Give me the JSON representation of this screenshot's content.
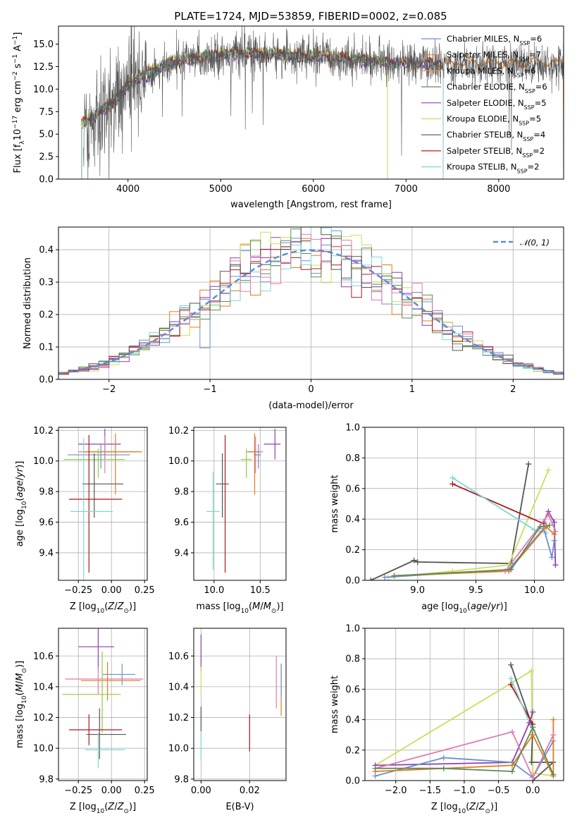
{
  "title": "PLATE=1724, MJD=53859, FIBERID=0002, z=0.085",
  "colors": {
    "chabrier_miles": "#6a8fd0",
    "salpeter_miles": "#e07b1e",
    "kroupa_miles": "#e8923a",
    "chabrier_elodie": "#5b8a5b",
    "salpeter_elodie": "#8e3fb0",
    "kroupa_elodie": "#c8e05a",
    "chabrier_stelib": "#555555",
    "salpeter_stelib": "#b01818",
    "kroupa_stelib": "#7fd6d8",
    "pink": "#e07ab0",
    "light_green": "#8fce3a",
    "ref_dash": "#5b8fd0"
  },
  "chart_data": [
    {
      "id": "spectrum",
      "type": "line",
      "xlabel": "wavelength [Angstrom, rest frame]",
      "ylabel": "Flux [fλ10⁻¹⁷ erg cm⁻² s⁻¹ A⁻¹]",
      "xlim": [
        3250,
        8700
      ],
      "ylim": [
        0,
        17
      ],
      "xticks": [
        4000,
        5000,
        6000,
        7000,
        8000
      ],
      "yticks": [
        0.0,
        2.5,
        5.0,
        7.5,
        10.0,
        12.5,
        15.0
      ],
      "grid": false,
      "legend": "upper right",
      "series": [
        {
          "name": "Chabrier MILES, N_SSP=6",
          "legend_main": "Chabrier MILES, N",
          "legend_sub": "SSP",
          "legend_tail": "=6",
          "color": "#6a8fd0"
        },
        {
          "name": "Salpeter MILES, N_SSP=7",
          "legend_main": "Salpeter MILES, N",
          "legend_sub": "SSP",
          "legend_tail": "=7",
          "color": "#e07b1e"
        },
        {
          "name": "Kroupa MILES, N_SSP=6",
          "legend_main": "Kroupa MILES, N",
          "legend_sub": "SSP",
          "legend_tail": "=6",
          "color": "#e8923a"
        },
        {
          "name": "Chabrier ELODIE, N_SSP=6",
          "legend_main": "Chabrier ELODIE, N",
          "legend_sub": "SSP",
          "legend_tail": "=6",
          "color": "#5b8a5b"
        },
        {
          "name": "Salpeter ELODIE, N_SSP=5",
          "legend_main": "Salpeter ELODIE, N",
          "legend_sub": "SSP",
          "legend_tail": "=5",
          "color": "#8e3fb0"
        },
        {
          "name": "Kroupa ELODIE, N_SSP=5",
          "legend_main": "Kroupa ELODIE, N",
          "legend_sub": "SSP",
          "legend_tail": "=5",
          "color": "#c8e05a"
        },
        {
          "name": "Chabrier STELIB, N_SSP=4",
          "legend_main": "Chabrier STELIB, N",
          "legend_sub": "SSP",
          "legend_tail": "=4",
          "color": "#555555"
        },
        {
          "name": "Salpeter STELIB, N_SSP=2",
          "legend_main": "Salpeter STELIB, N",
          "legend_sub": "SSP",
          "legend_tail": "=2",
          "color": "#b01818"
        },
        {
          "name": "Kroupa STELIB, N_SSP=2",
          "legend_main": "Kroupa STELIB, N",
          "legend_sub": "SSP",
          "legend_tail": "=2",
          "color": "#7fd6d8"
        }
      ],
      "model_continuum": {
        "x": [
          3500,
          3700,
          3900,
          4000,
          4200,
          4400,
          4600,
          4800,
          5000,
          5200,
          5400,
          5600,
          5800,
          6000,
          6200,
          6400,
          6600,
          6800,
          7000,
          7200,
          7400,
          7600,
          7800,
          8000,
          8200,
          8400,
          8700
        ],
        "y": [
          6.0,
          7.5,
          9.0,
          10.5,
          11.7,
          12.6,
          13.2,
          13.5,
          13.8,
          14.0,
          13.9,
          13.8,
          13.7,
          13.6,
          13.5,
          13.3,
          13.1,
          13.0,
          12.9,
          12.8,
          12.7,
          12.8,
          12.7,
          12.8,
          12.8,
          12.8,
          12.7
        ]
      }
    },
    {
      "id": "residuals",
      "type": "line",
      "xlabel": "(data-model)/error",
      "ylabel": "Normed distribution",
      "xlim": [
        -2.5,
        2.5
      ],
      "ylim": [
        0,
        0.47
      ],
      "xticks": [
        -2,
        -1,
        0,
        1,
        2
      ],
      "yticks": [
        0.0,
        0.1,
        0.2,
        0.3,
        0.4
      ],
      "grid": true,
      "legend": "upper right",
      "reference": {
        "name": "𝒩(0, 1)",
        "mu": 0,
        "sigma": 1
      }
    },
    {
      "id": "age-vs-Z",
      "type": "scatter",
      "xlabel": "Z [log10(Z/Z⊙)]",
      "ylabel": "age  [log10(age/yr)]",
      "xlim": [
        -0.4,
        0.27
      ],
      "ylim": [
        9.22,
        10.22
      ],
      "xticks": [
        -0.25,
        0.0,
        0.25
      ],
      "yticks": [
        9.4,
        9.6,
        9.8,
        10.0,
        10.2
      ],
      "grid": true,
      "points": [
        {
          "x": -0.05,
          "y": 10.11,
          "xerr": [
            0.2,
            0.12
          ],
          "yerr": [
            0.1,
            0.1
          ],
          "color": "#8e3fb0"
        },
        {
          "x": -0.05,
          "y": 10.06,
          "xerr": [
            0.2,
            0.25
          ],
          "yerr": [
            0.14,
            0.1
          ],
          "color": "#e07ab0"
        },
        {
          "x": 0.03,
          "y": 10.06,
          "xerr": [
            0.24,
            0.2
          ],
          "yerr": [
            0.28,
            0.12
          ],
          "color": "#e07b1e"
        },
        {
          "x": -0.08,
          "y": 10.04,
          "xerr": [
            0.25,
            0.22
          ],
          "yerr": [
            0.09,
            0.07
          ],
          "color": "#6a8fd0"
        },
        {
          "x": -0.1,
          "y": 10.01,
          "xerr": [
            0.26,
            0.2
          ],
          "yerr": [
            0.12,
            0.07
          ],
          "color": "#8fce3a"
        },
        {
          "x": -0.13,
          "y": 9.85,
          "xerr": [
            0.09,
            0.22
          ],
          "yerr": [
            0.22,
            0.2
          ],
          "color": "#555555"
        },
        {
          "x": -0.17,
          "y": 9.75,
          "xerr": [
            0.15,
            0.25
          ],
          "yerr": [
            0.48,
            0.42
          ],
          "color": "#b01818"
        },
        {
          "x": -0.21,
          "y": 9.67,
          "xerr": [
            0.1,
            0.22
          ],
          "yerr": [
            0.48,
            0.48
          ],
          "color": "#7fd6d8"
        }
      ]
    },
    {
      "id": "age-vs-mass",
      "type": "scatter",
      "xlabel": "mass [log10(M/M⊙)]",
      "ylabel": "",
      "xlim": [
        9.78,
        10.78
      ],
      "ylim": [
        9.22,
        10.22
      ],
      "xticks": [
        10.0,
        10.5
      ],
      "yticks": [
        9.4,
        9.6,
        9.8,
        10.0,
        10.2
      ],
      "grid": true,
      "points": [
        {
          "x": 10.66,
          "y": 10.11,
          "xerr": [
            0.12,
            0.06
          ],
          "yerr": [
            0.1,
            0.1
          ],
          "color": "#8e3fb0"
        },
        {
          "x": 10.45,
          "y": 10.06,
          "xerr": [
            0.1,
            0.08
          ],
          "yerr": [
            0.14,
            0.1
          ],
          "color": "#e07ab0"
        },
        {
          "x": 10.44,
          "y": 10.06,
          "xerr": [
            0.07,
            0.06
          ],
          "yerr": [
            0.28,
            0.12
          ],
          "color": "#e07b1e"
        },
        {
          "x": 10.48,
          "y": 10.04,
          "xerr": [
            0.05,
            0.03
          ],
          "yerr": [
            0.09,
            0.07
          ],
          "color": "#6a8fd0"
        },
        {
          "x": 10.35,
          "y": 10.01,
          "xerr": [
            0.06,
            0.06
          ],
          "yerr": [
            0.12,
            0.07
          ],
          "color": "#8fce3a"
        },
        {
          "x": 10.09,
          "y": 9.85,
          "xerr": [
            0.07,
            0.07
          ],
          "yerr": [
            0.22,
            0.2
          ],
          "color": "#555555"
        },
        {
          "x": 10.12,
          "y": 9.75,
          "xerr": [
            0.0,
            0.0
          ],
          "yerr": [
            0.48,
            0.42
          ],
          "color": "#b01818"
        },
        {
          "x": 9.99,
          "y": 9.67,
          "xerr": [
            0.07,
            0.07
          ],
          "yerr": [
            0.38,
            0.26
          ],
          "color": "#7fd6d8"
        }
      ]
    },
    {
      "id": "massweight-vs-age",
      "type": "line",
      "xlabel": "age  [log10(age/yr)]",
      "ylabel": "mass weight",
      "xlim": [
        8.55,
        10.25
      ],
      "ylim": [
        0,
        1.0
      ],
      "xticks": [
        9.0,
        9.5,
        10.0
      ],
      "yticks": [
        0.0,
        0.2,
        0.4,
        0.6,
        0.8,
        1.0
      ],
      "grid": true,
      "series": [
        {
          "color": "#555555",
          "x": [
            8.6,
            8.97,
            9.0,
            9.8,
            9.95
          ],
          "y": [
            0.0,
            0.13,
            0.12,
            0.11,
            0.76
          ]
        },
        {
          "color": "#c8e05a",
          "x": [
            8.75,
            9.3,
            9.78,
            10.12
          ],
          "y": [
            0.02,
            0.06,
            0.1,
            0.72
          ]
        },
        {
          "color": "#b01818",
          "x": [
            9.3,
            10.08
          ],
          "y": [
            0.63,
            0.37
          ]
        },
        {
          "color": "#7fd6d8",
          "x": [
            9.3,
            10.0,
            10.1
          ],
          "y": [
            0.67,
            0.33,
            0.31
          ]
        },
        {
          "color": "#8e3fb0",
          "x": [
            10.08,
            10.12,
            10.17,
            10.18
          ],
          "y": [
            0.38,
            0.45,
            0.38,
            0.1
          ]
        },
        {
          "color": "#6a8fd0",
          "x": [
            8.72,
            9.78,
            10.08,
            10.15,
            10.17
          ],
          "y": [
            0.02,
            0.07,
            0.34,
            0.15,
            0.26
          ]
        },
        {
          "color": "#e07b1e",
          "x": [
            8.8,
            9.78,
            10.1,
            10.17
          ],
          "y": [
            0.03,
            0.06,
            0.35,
            0.3
          ]
        },
        {
          "color": "#e07ab0",
          "x": [
            9.75,
            10.12,
            10.18
          ],
          "y": [
            0.06,
            0.43,
            0.32
          ]
        },
        {
          "color": "#5b8a5b",
          "x": [
            8.8,
            9.8,
            10.05,
            10.13
          ],
          "y": [
            0.03,
            0.07,
            0.35,
            0.36
          ]
        }
      ]
    },
    {
      "id": "mass-vs-Z",
      "type": "scatter",
      "xlabel": "Z [log10(Z/Z⊙)]",
      "ylabel": "mass [log10(M/M⊙)]",
      "xlim": [
        -0.4,
        0.27
      ],
      "ylim": [
        9.79,
        10.78
      ],
      "xticks": [
        -0.25,
        0.0,
        0.25
      ],
      "yticks": [
        9.8,
        10.0,
        10.2,
        10.4,
        10.6
      ],
      "grid": true,
      "points": [
        {
          "x": -0.1,
          "y": 10.66,
          "xerr": [
            0.15,
            0.12
          ],
          "yerr": [
            0.15,
            0.12
          ],
          "color": "#8e3fb0"
        },
        {
          "x": 0.08,
          "y": 10.48,
          "xerr": [
            0.15,
            0.1
          ],
          "yerr": [
            0.07,
            0.07
          ],
          "color": "#6a8fd0"
        },
        {
          "x": -0.1,
          "y": 10.45,
          "xerr": [
            0.25,
            0.34
          ],
          "yerr": [
            0.1,
            0.08
          ],
          "color": "#e07ab0"
        },
        {
          "x": -0.03,
          "y": 10.44,
          "xerr": [
            0.2,
            0.25
          ],
          "yerr": [
            0.13,
            0.12
          ],
          "color": "#e07b1e"
        },
        {
          "x": -0.07,
          "y": 10.35,
          "xerr": [
            0.3,
            0.14
          ],
          "yerr": [
            0.25,
            0.28
          ],
          "color": "#8fce3a"
        },
        {
          "x": -0.17,
          "y": 10.12,
          "xerr": [
            0.15,
            0.25
          ],
          "yerr": [
            0.1,
            0.1
          ],
          "color": "#b01818"
        },
        {
          "x": -0.09,
          "y": 10.09,
          "xerr": [
            0.1,
            0.2
          ],
          "yerr": [
            0.16,
            0.17
          ],
          "color": "#555555"
        },
        {
          "x": -0.1,
          "y": 9.99,
          "xerr": [
            0.1,
            0.2
          ],
          "yerr": [
            0.12,
            0.11
          ],
          "color": "#7fd6d8"
        }
      ]
    },
    {
      "id": "mass-vs-EBV",
      "type": "scatter",
      "xlabel": "E(B-V)",
      "ylabel": "",
      "xlim": [
        -0.003,
        0.035
      ],
      "ylim": [
        9.79,
        10.78
      ],
      "xticks": [
        0.0,
        0.02
      ],
      "yticks": [
        9.8,
        10.0,
        10.2,
        10.4,
        10.6
      ],
      "grid": true,
      "points": [
        {
          "x": 0.0,
          "y": 10.62,
          "xerr": [
            0,
            0
          ],
          "yerr": [
            0.12,
            0.12
          ],
          "color": "#8e3fb0"
        },
        {
          "x": 0.0,
          "y": 10.45,
          "xerr": [
            0,
            0
          ],
          "yerr": [
            0.1,
            0.08
          ],
          "color": "#c8e05a"
        },
        {
          "x": 0.0,
          "y": 10.19,
          "xerr": [
            0,
            0
          ],
          "yerr": [
            0.08,
            0.08
          ],
          "color": "#555555"
        },
        {
          "x": 0.0,
          "y": 10.02,
          "xerr": [
            0,
            0
          ],
          "yerr": [
            0.1,
            0.09
          ],
          "color": "#7fd6d8"
        },
        {
          "x": 0.02,
          "y": 10.1,
          "xerr": [
            0,
            0
          ],
          "yerr": [
            0.12,
            0.12
          ],
          "color": "#b01818"
        },
        {
          "x": 0.031,
          "y": 10.43,
          "xerr": [
            0,
            0
          ],
          "yerr": [
            0.17,
            0.17
          ],
          "color": "#e07ab0"
        },
        {
          "x": 0.033,
          "y": 10.38,
          "xerr": [
            0,
            0
          ],
          "yerr": [
            0.17,
            0.17
          ],
          "color": "#e07b1e"
        },
        {
          "x": 0.033,
          "y": 10.44,
          "xerr": [
            0,
            0
          ],
          "yerr": [
            0.1,
            0.1
          ],
          "color": "#6a8fd0"
        }
      ]
    },
    {
      "id": "massweight-vs-Z",
      "type": "line",
      "xlabel": "Z [log10(Z/Z⊙)]",
      "ylabel": "mass weight",
      "xlim": [
        -2.45,
        0.45
      ],
      "ylim": [
        0,
        1.0
      ],
      "xticks": [
        -2.0,
        -1.5,
        -1.0,
        -0.5,
        0.0
      ],
      "yticks": [
        0.0,
        0.2,
        0.4,
        0.6,
        0.8,
        1.0
      ],
      "grid": true,
      "series": [
        {
          "color": "#c8e05a",
          "x": [
            -2.3,
            -0.02,
            0.0,
            0.3
          ],
          "y": [
            0.1,
            0.72,
            0.05,
            0.03
          ]
        },
        {
          "color": "#555555",
          "x": [
            -0.32,
            0.0,
            -0.02,
            0.3,
            0.0
          ],
          "y": [
            0.76,
            0.35,
            0.12,
            0.12,
            0.0
          ]
        },
        {
          "color": "#b01818",
          "x": [
            -0.32,
            0.0
          ],
          "y": [
            0.63,
            0.37
          ]
        },
        {
          "color": "#7fd6d8",
          "x": [
            -0.32,
            0.0
          ],
          "y": [
            0.67,
            0.33
          ]
        },
        {
          "color": "#8e3fb0",
          "x": [
            -2.3,
            -0.3,
            -0.05,
            0.0
          ],
          "y": [
            0.1,
            0.12,
            0.38,
            0.45
          ]
        },
        {
          "color": "#6a8fd0",
          "x": [
            -2.3,
            -1.3,
            -0.3,
            0.0,
            0.3
          ],
          "y": [
            0.03,
            0.15,
            0.12,
            0.02,
            0.26
          ]
        },
        {
          "color": "#e07b1e",
          "x": [
            -2.3,
            -0.3,
            0.0,
            0.3,
            0.3
          ],
          "y": [
            0.06,
            0.1,
            0.3,
            0.03,
            0.4
          ]
        },
        {
          "color": "#e07ab0",
          "x": [
            -2.3,
            -0.3,
            0.0,
            0.3
          ],
          "y": [
            0.08,
            0.32,
            0.02,
            0.3
          ]
        },
        {
          "color": "#5b8a5b",
          "x": [
            -2.3,
            -1.3,
            -0.3,
            0.0,
            0.3
          ],
          "y": [
            0.08,
            0.08,
            0.06,
            0.35,
            0.04
          ]
        }
      ]
    }
  ]
}
